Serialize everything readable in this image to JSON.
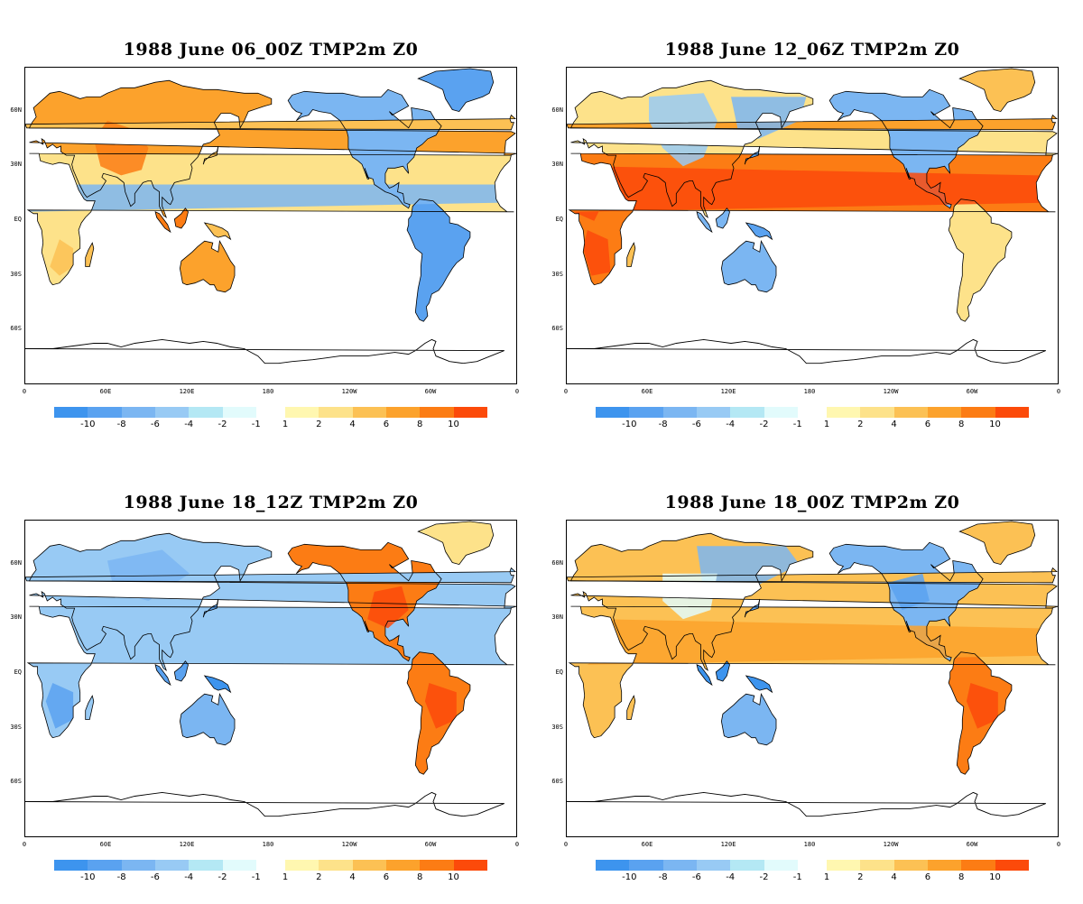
{
  "panels": [
    {
      "title": "1988 June 06_00Z TMP2m Z0",
      "pattern": "warm-eurasia"
    },
    {
      "title": "1988 June 12_06Z TMP2m Z0",
      "pattern": "warm-africa"
    },
    {
      "title": "1988 June 18_12Z TMP2m Z0",
      "pattern": "warm-americas"
    },
    {
      "title": "1988 June 18_00Z TMP2m Z0",
      "pattern": "warm-mixed"
    }
  ],
  "lat_labels": [
    "60N",
    "30N",
    "EQ",
    "30S",
    "60S"
  ],
  "lon_labels": [
    "0",
    "60E",
    "120E",
    "180",
    "120W",
    "60W",
    "0"
  ],
  "colorbar": {
    "cool": {
      "labels": [
        "-10",
        "-8",
        "-6",
        "-4",
        "-2",
        "-1"
      ],
      "colors": [
        "#3d94ee",
        "#5aa2f0",
        "#7bb6f2",
        "#98caf4",
        "#b4e8f4",
        "#e2fbfc"
      ]
    },
    "warm": {
      "labels": [
        "1",
        "2",
        "4",
        "6",
        "8",
        "10"
      ],
      "colors": [
        "#fff7b0",
        "#fde28a",
        "#fcc154",
        "#fca22c",
        "#fc7c14",
        "#fc4a0a"
      ]
    }
  }
}
